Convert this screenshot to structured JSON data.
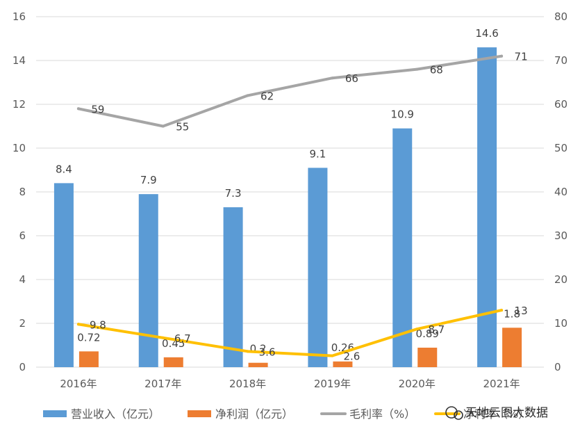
{
  "chart_data": {
    "type": "bar",
    "categories": [
      "2016年",
      "2017年",
      "2018年",
      "2019年",
      "2020年",
      "2021年"
    ],
    "series": [
      {
        "name": "营业收入（亿元）",
        "type": "bar",
        "axis": "left",
        "color": "#5B9BD5",
        "values": [
          8.4,
          7.9,
          7.3,
          9.1,
          10.9,
          14.6
        ],
        "labels": [
          "8.4",
          "7.9",
          "7.3",
          "9.1",
          "10.9",
          "14.6"
        ]
      },
      {
        "name": "净利润（亿元）",
        "type": "bar",
        "axis": "left",
        "color": "#ED7D31",
        "values": [
          0.72,
          0.45,
          0.2,
          0.26,
          0.89,
          1.8
        ],
        "labels": [
          "0.72",
          "0.45",
          "0.2",
          "0.26",
          "0.89",
          "1.8"
        ]
      },
      {
        "name": "毛利率（%）",
        "type": "line",
        "axis": "right",
        "color": "#A5A5A5",
        "values": [
          59,
          55,
          62,
          66,
          68,
          71
        ],
        "labels": [
          "59",
          "55",
          "62",
          "66",
          "68",
          "71"
        ]
      },
      {
        "name": "净利率（%）",
        "type": "line",
        "axis": "right",
        "color": "#FFC000",
        "values": [
          9.8,
          6.7,
          3.6,
          2.6,
          8.7,
          13
        ],
        "labels": [
          "9.8",
          "6.7",
          "3.6",
          "2.6",
          "8.7",
          "13"
        ]
      }
    ],
    "left_axis": {
      "min": 0,
      "max": 16,
      "ticks": [
        "0",
        "2",
        "4",
        "6",
        "8",
        "10",
        "12",
        "14",
        "16"
      ]
    },
    "right_axis": {
      "min": 0,
      "max": 80,
      "ticks": [
        "0",
        "10",
        "20",
        "30",
        "40",
        "50",
        "60",
        "70",
        "80"
      ]
    },
    "grid": "horizontal",
    "legend_position": "bottom"
  },
  "watermark": {
    "text": "天地云图大数据",
    "icon": "wechat-icon"
  }
}
